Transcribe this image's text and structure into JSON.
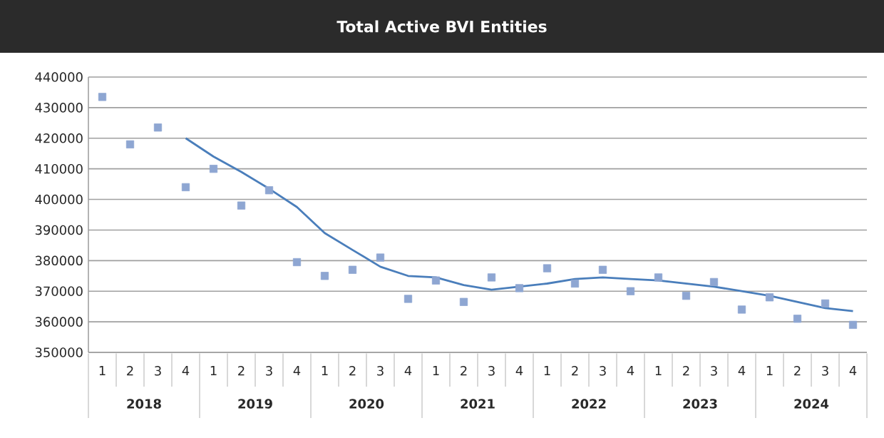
{
  "chart_data": {
    "type": "scatter",
    "title": "Total Active BVI Entities",
    "categories": [
      "1",
      "2",
      "3",
      "4",
      "1",
      "2",
      "3",
      "4",
      "1",
      "2",
      "3",
      "4",
      "1",
      "2",
      "3",
      "4",
      "1",
      "2",
      "3",
      "4",
      "1",
      "2",
      "3",
      "4",
      "1",
      "2",
      "3",
      "4"
    ],
    "annotations": [
      "2018",
      "2019",
      "2020",
      "2021",
      "2022",
      "2023",
      "2024"
    ],
    "series": [
      {
        "color": "#8ea6d2",
        "marker": "square",
        "values": [
          433500,
          418000,
          423500,
          404000,
          410000,
          398000,
          403000,
          379500,
          375000,
          377000,
          381000,
          367500,
          373500,
          366500,
          374500,
          371000,
          377500,
          372500,
          377000,
          370000,
          374500,
          368500,
          373000,
          364000,
          368000,
          361000,
          366000,
          359000
        ]
      },
      {
        "type": "line",
        "color": "#4a7ebb",
        "values": [
          null,
          null,
          null,
          420000,
          414000,
          409000,
          403500,
          397500,
          389000,
          383500,
          378000,
          375000,
          374500,
          372000,
          370500,
          371500,
          372500,
          374000,
          374500,
          374000,
          373500,
          372500,
          371500,
          370000,
          368500,
          366500,
          364500,
          363500
        ]
      }
    ],
    "ylim": [
      350000,
      440000
    ],
    "yticks": [
      350000,
      360000,
      370000,
      380000,
      390000,
      400000,
      410000,
      420000,
      430000,
      440000
    ],
    "grid": "y",
    "line_style": "solid"
  }
}
